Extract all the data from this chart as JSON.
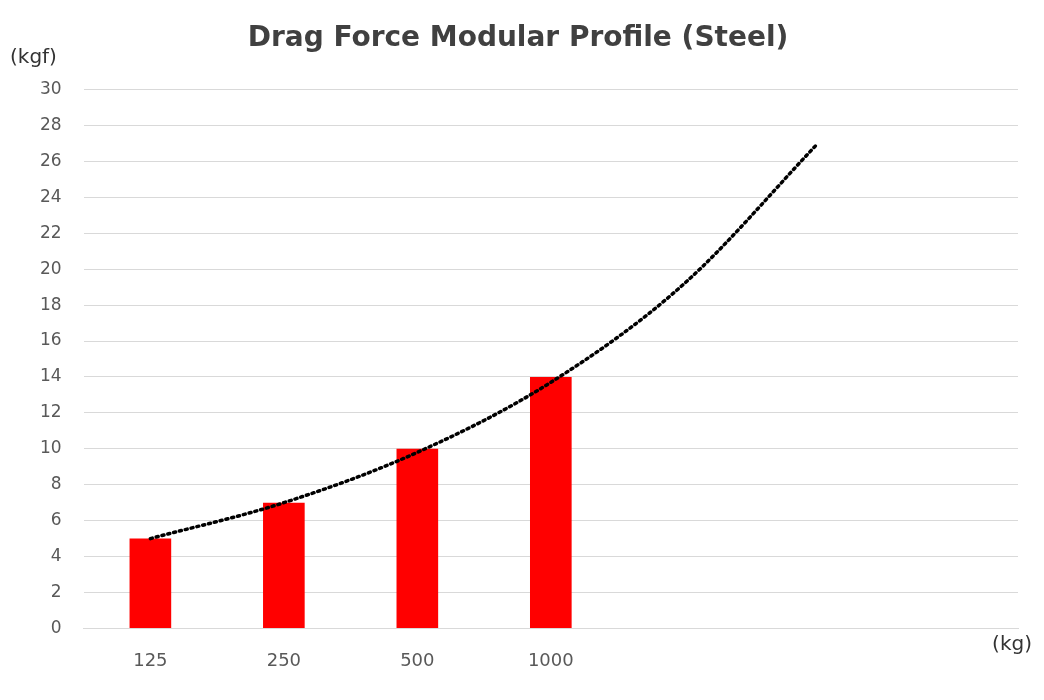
{
  "chart_data": {
    "type": "bar",
    "title": "Drag Force Modular Profile (Steel)",
    "xlabel": "(kg)",
    "ylabel": "(kgf)",
    "categories": [
      "125",
      "250",
      "500",
      "1000",
      null,
      null,
      null
    ],
    "series": [
      {
        "color": "#ff0000",
        "values": [
          5,
          7,
          10,
          14,
          null,
          null,
          null
        ]
      },
      {
        "type": "line",
        "color": "#000000",
        "line_style": "dotted",
        "marker": "none",
        "values": [
          5,
          7,
          9.8,
          13.7,
          19.2,
          27,
          null
        ]
      }
    ],
    "ylim": [
      0,
      30
    ],
    "yticks": [
      0,
      2,
      4,
      6,
      8,
      10,
      12,
      14,
      16,
      18,
      20,
      22,
      24,
      26,
      28,
      30
    ],
    "grid": "y",
    "legend": false
  }
}
